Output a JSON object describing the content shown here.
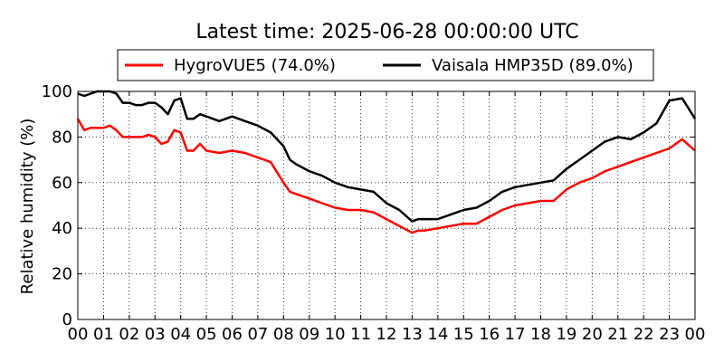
{
  "chart_data": {
    "type": "line",
    "title": "Latest time: 2025-06-28 00:00:00 UTC",
    "ylabel": "Relative humidity (%)",
    "xlabel": "",
    "xlim": [
      0,
      24
    ],
    "ylim": [
      0,
      100
    ],
    "x_ticks": [
      "00",
      "01",
      "02",
      "03",
      "04",
      "05",
      "06",
      "07",
      "08",
      "09",
      "10",
      "11",
      "12",
      "13",
      "14",
      "15",
      "16",
      "17",
      "18",
      "19",
      "20",
      "21",
      "22",
      "23",
      "00"
    ],
    "y_ticks": [
      "0",
      "20",
      "40",
      "60",
      "80",
      "100"
    ],
    "grid": true,
    "legend_placement": "top-center",
    "series": [
      {
        "name": "HygroVUE5 (74.0%)",
        "color": "#ff0000",
        "x": [
          0,
          0.25,
          0.5,
          0.75,
          1,
          1.25,
          1.5,
          1.75,
          2,
          2.25,
          2.5,
          2.75,
          3,
          3.25,
          3.5,
          3.75,
          4,
          4.25,
          4.5,
          4.75,
          5,
          5.5,
          6,
          6.5,
          7,
          7.5,
          8,
          8.25,
          8.5,
          9,
          9.5,
          10,
          10.5,
          11,
          11.5,
          12,
          12.5,
          13,
          13.25,
          13.5,
          14,
          14.5,
          15,
          15.5,
          16,
          16.5,
          17,
          17.5,
          18,
          18.5,
          19,
          19.5,
          20,
          20.5,
          21,
          21.5,
          22,
          22.5,
          23,
          23.5,
          24
        ],
        "y": [
          88,
          83,
          84,
          84,
          84,
          85,
          83,
          80,
          80,
          80,
          80,
          81,
          80,
          77,
          78,
          83,
          82,
          74,
          74,
          77,
          74,
          73,
          74,
          73,
          71,
          69,
          60,
          56,
          55,
          53,
          51,
          49,
          48,
          48,
          47,
          44,
          41,
          38,
          39,
          39,
          40,
          41,
          42,
          42,
          45,
          48,
          50,
          51,
          52,
          52,
          57,
          60,
          62,
          65,
          67,
          69,
          71,
          73,
          75,
          79,
          74
        ]
      },
      {
        "name": "Vaisala HMP35D (89.0%)",
        "color": "#000000",
        "x": [
          0,
          0.25,
          0.5,
          0.75,
          1,
          1.25,
          1.5,
          1.75,
          2,
          2.25,
          2.5,
          2.75,
          3,
          3.25,
          3.5,
          3.75,
          4,
          4.25,
          4.5,
          4.75,
          5,
          5.5,
          6,
          6.5,
          7,
          7.5,
          8,
          8.25,
          8.5,
          9,
          9.5,
          10,
          10.5,
          11,
          11.5,
          12,
          12.5,
          13,
          13.25,
          13.5,
          14,
          14.5,
          15,
          15.5,
          16,
          16.5,
          17,
          17.5,
          18,
          18.5,
          19,
          19.5,
          20,
          20.5,
          21,
          21.5,
          22,
          22.5,
          23,
          23.5,
          24
        ],
        "y": [
          99,
          98,
          99,
          101,
          100,
          101,
          99,
          95,
          95,
          94,
          94,
          95,
          95,
          93,
          90,
          96,
          97,
          88,
          88,
          90,
          89,
          87,
          89,
          87,
          85,
          82,
          76,
          70,
          68,
          65,
          63,
          60,
          58,
          57,
          56,
          51,
          48,
          43,
          44,
          44,
          44,
          46,
          48,
          49,
          52,
          56,
          58,
          59,
          60,
          61,
          66,
          70,
          74,
          78,
          80,
          79,
          82,
          86,
          96,
          97,
          88
        ]
      }
    ]
  }
}
